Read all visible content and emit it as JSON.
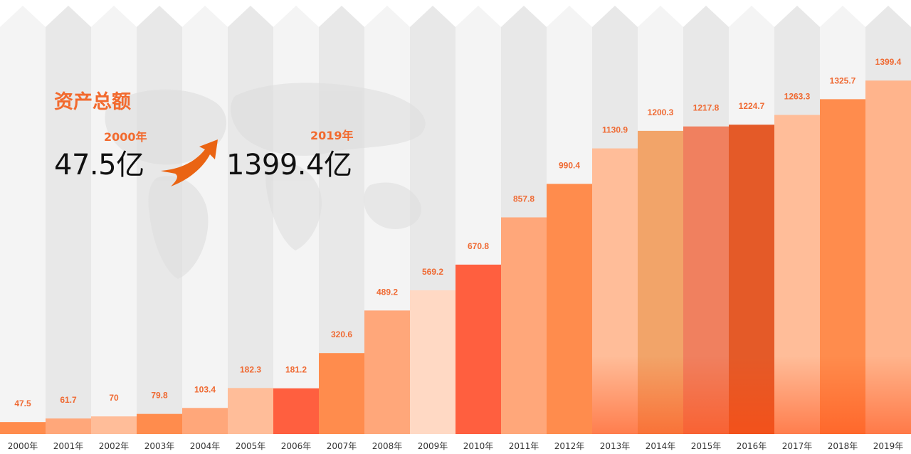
{
  "summary": {
    "title": "资产总额",
    "start_year": "2000年",
    "start_value": "47.5亿",
    "end_year": "2019年",
    "end_value": "1399.4亿"
  },
  "icons": {
    "trend": "trend-arrow-icon",
    "background": "world-map"
  },
  "colors": {
    "accent": "#f26a2e",
    "column_bg_light": "#f4f4f4",
    "column_bg_dark": "#e8e8e8",
    "label": "#ef6a33",
    "axis_label": "#333333"
  },
  "chart_data": {
    "type": "bar",
    "categories": [
      "2000年",
      "2001年",
      "2002年",
      "2003年",
      "2004年",
      "2005年",
      "2006年",
      "2007年",
      "2008年",
      "2009年",
      "2010年",
      "2011年",
      "2012年",
      "2013年",
      "2014年",
      "2015年",
      "2016年",
      "2017年",
      "2018年",
      "2019年"
    ],
    "values": [
      47.5,
      61.7,
      70,
      79.8,
      103.4,
      182.3,
      181.2,
      320.6,
      489.2,
      569.2,
      670.8,
      857.8,
      990.4,
      1130.9,
      1200.3,
      1217.8,
      1224.7,
      1263.3,
      1325.7,
      1399.4
    ],
    "bar_colors": [
      "#ff8c4d",
      "#ffa77a",
      "#ffbd99",
      "#ff8c4d",
      "#ffa77a",
      "#ffbd99",
      "#ff5f3f",
      "#ff8c4d",
      "#ffa77a",
      "#ffd9c4",
      "#ff5f3f",
      "#ffa77a",
      "#ff8c4d",
      "#ffbd99",
      "#f2a469",
      "#f0805f",
      "#e45a28",
      "#ffbd99",
      "#ff8c4d",
      "#ffb48c"
    ],
    "labels_shown": [
      "47.5",
      "61.7",
      "70",
      "79.8",
      "103.4",
      "182.3",
      "181.2",
      "320.6",
      "489.2",
      "569.2",
      "670.8",
      "857.8",
      "990.4",
      "1130.9",
      "1200.3",
      "1217.8",
      "1224.7",
      "1263.3",
      "1325.7",
      "1399.4"
    ],
    "title": "资产总额",
    "xlabel": "",
    "ylabel": "",
    "ylim": [
      0,
      1550
    ],
    "grid": false,
    "legend": "none"
  }
}
